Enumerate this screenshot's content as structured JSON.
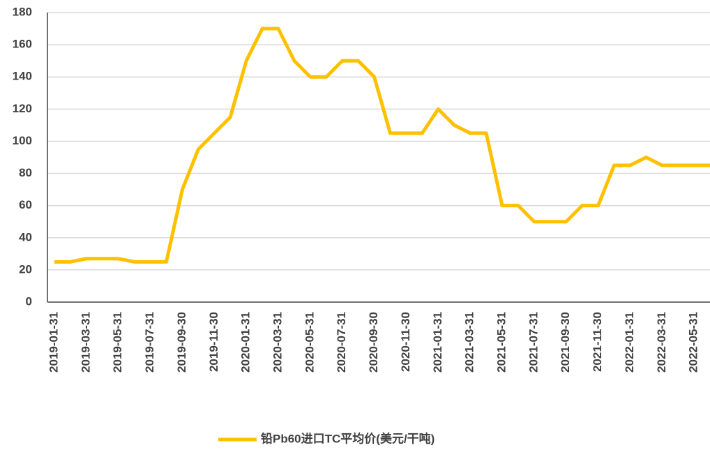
{
  "chart_data": {
    "type": "line",
    "categories": [
      "2019-01-31",
      null,
      "2019-03-31",
      null,
      "2019-05-31",
      null,
      "2019-07-31",
      null,
      "2019-09-30",
      null,
      "2019-11-30",
      null,
      "2020-01-31",
      null,
      "2020-03-31",
      null,
      "2020-05-31",
      null,
      "2020-07-31",
      null,
      "2020-09-30",
      null,
      "2020-11-30",
      null,
      "2021-01-31",
      null,
      "2021-03-31",
      null,
      "2021-05-31",
      null,
      "2021-07-31",
      null,
      "2021-09-30",
      null,
      "2021-11-30",
      null,
      "2022-01-31",
      null,
      "2022-03-31",
      null,
      "2022-05-31",
      null
    ],
    "series": [
      {
        "name": "铅Pb60进口TC平均价(美元/干吨)",
        "color": "#FFC000",
        "values": [
          25,
          25,
          27,
          27,
          27,
          25,
          25,
          25,
          70,
          95,
          105,
          115,
          150,
          170,
          170,
          150,
          140,
          140,
          150,
          150,
          140,
          105,
          105,
          105,
          120,
          110,
          105,
          105,
          60,
          60,
          50,
          50,
          50,
          60,
          60,
          85,
          85,
          90,
          85,
          85,
          85,
          85
        ]
      }
    ],
    "ylim": [
      0,
      180
    ],
    "yticks": [
      0,
      20,
      40,
      60,
      80,
      100,
      120,
      140,
      160,
      180
    ],
    "grid": true,
    "legend": "bottom"
  }
}
